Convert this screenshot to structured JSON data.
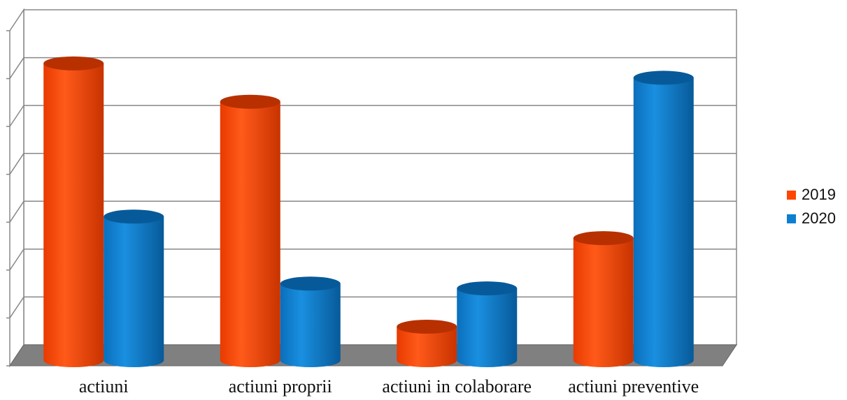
{
  "chart_data": {
    "type": "bar",
    "style": "3d-cylinder",
    "categories": [
      "actiuni",
      "actiuni proprii",
      "actiuni in colaborare",
      "actiuni preventive"
    ],
    "series": [
      {
        "name": "2019",
        "color": "#ff4500",
        "values": [
          62,
          54,
          7,
          25.5
        ]
      },
      {
        "name": "2020",
        "color": "#0c7fd1",
        "values": [
          30,
          16,
          15,
          59
        ]
      }
    ],
    "ylim": [
      0,
      70
    ],
    "ytick_step": 10,
    "grid": true,
    "legend_position": "right",
    "title": "",
    "xlabel": "",
    "ylabel": ""
  }
}
